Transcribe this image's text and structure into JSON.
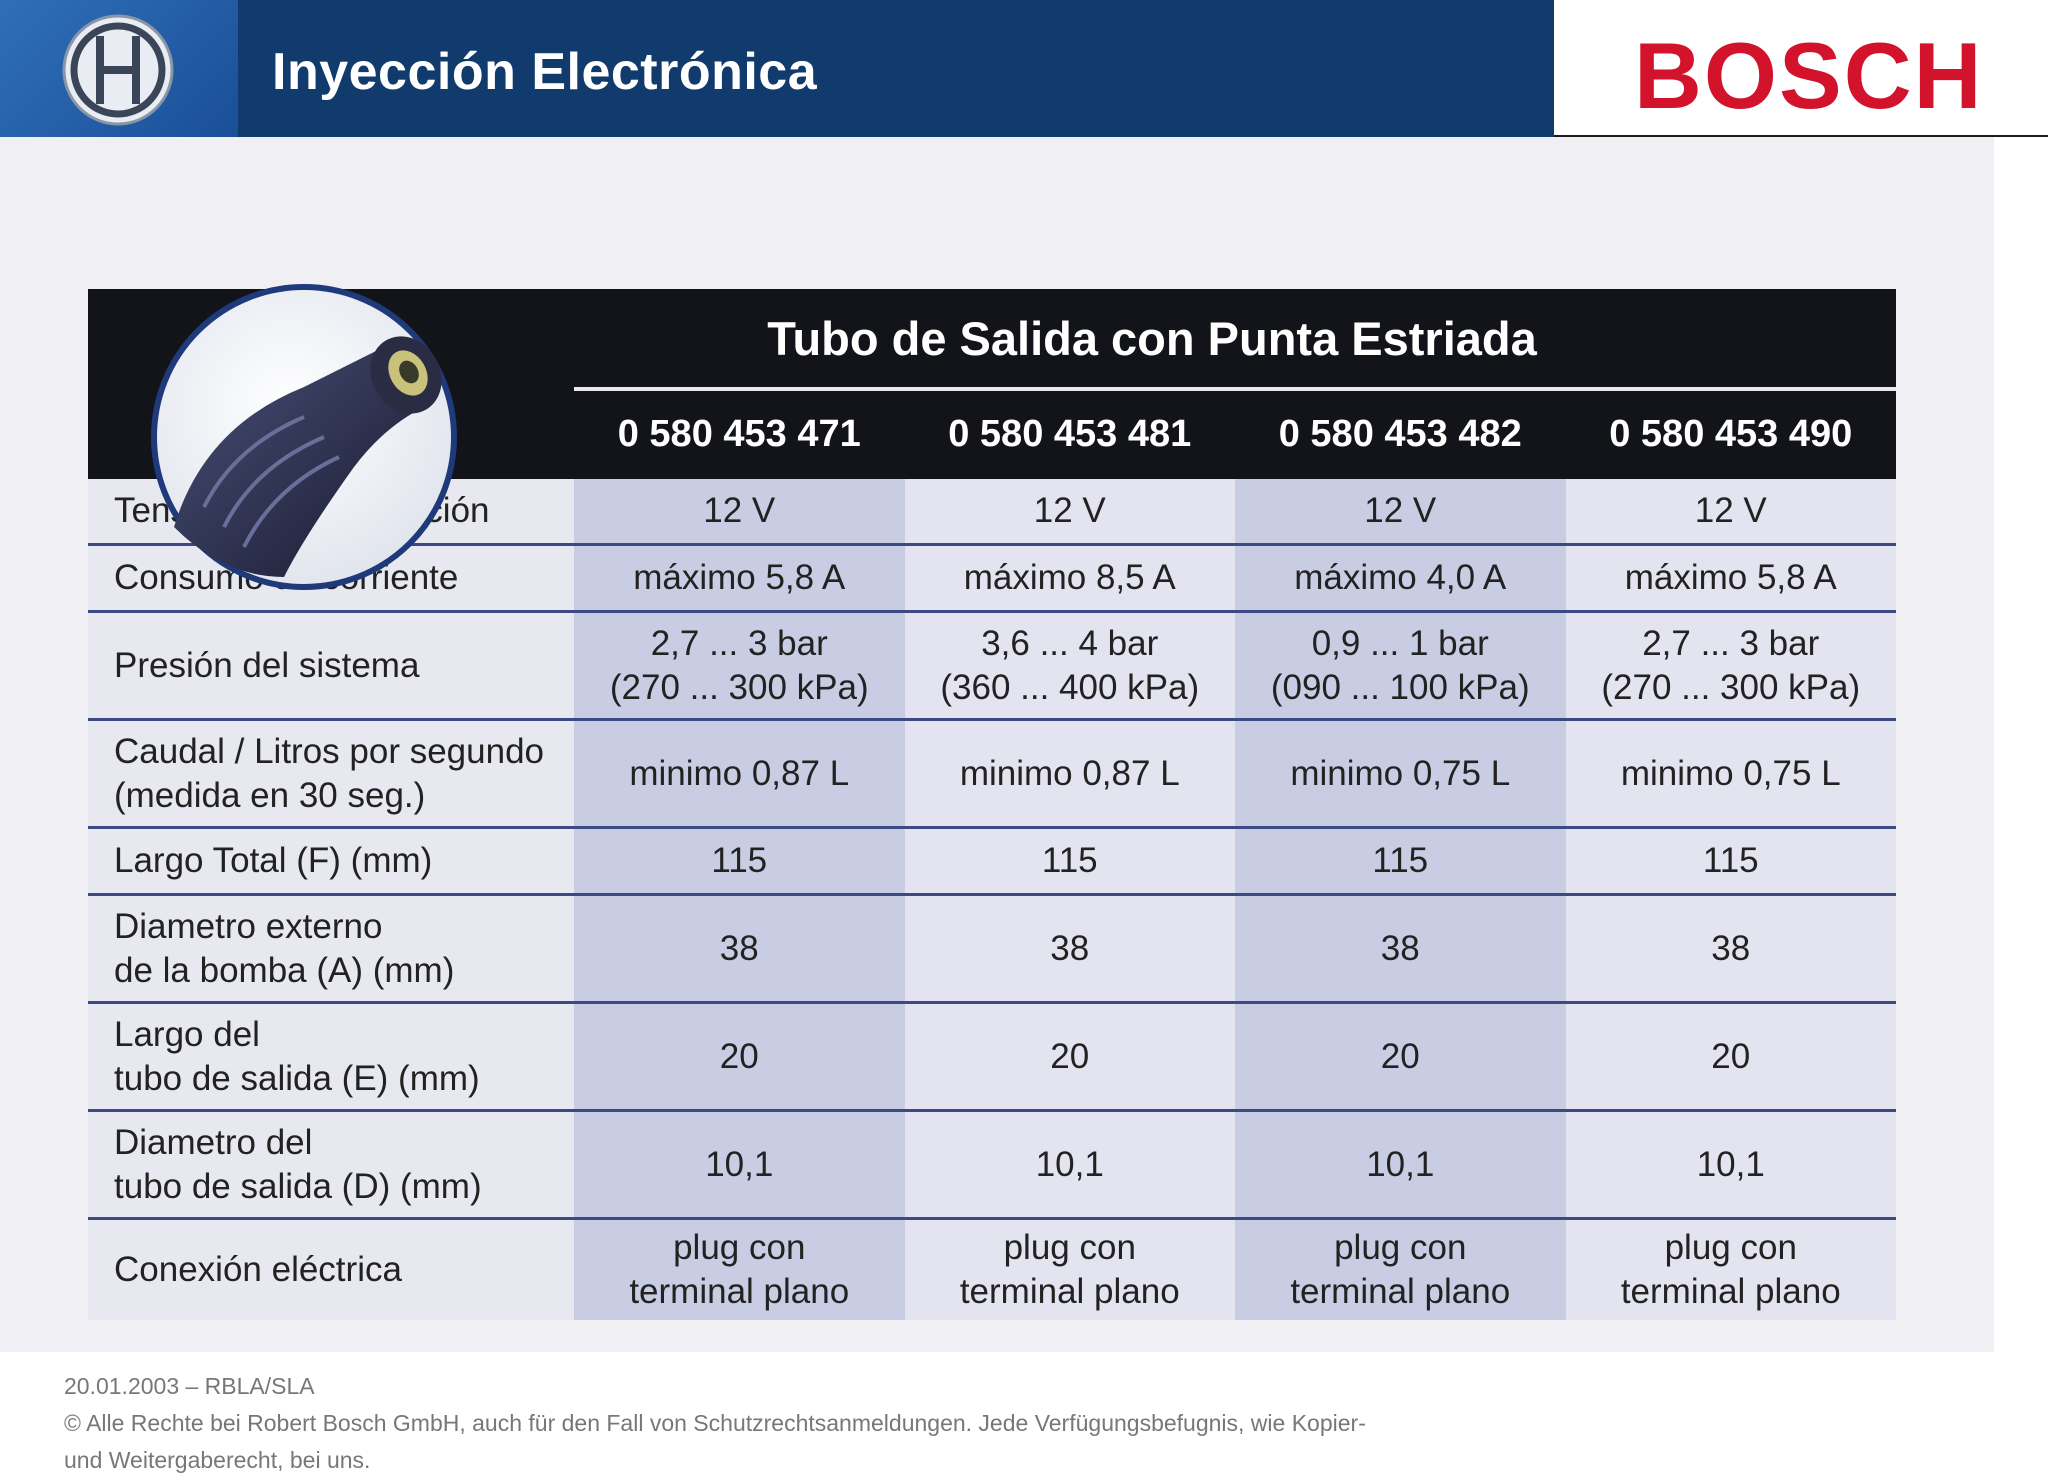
{
  "header": {
    "app_title": "Inyección Electrónica",
    "brand": "BOSCH",
    "colors": {
      "title_bar": "#113a6d",
      "logo_box": "#2f6fb8",
      "brand_red": "#d3132b"
    },
    "icons": [
      "bosch-armature-logo-icon"
    ]
  },
  "table": {
    "title": "Tubo de Salida con Punta Estriada",
    "models": [
      "0 580 453 471",
      "0 580 453 481",
      "0 580 453 482",
      "0 580 453 490"
    ],
    "rows": [
      {
        "label": [
          "Tensión de alimentación"
        ],
        "values": [
          [
            "12 V"
          ],
          [
            "12 V"
          ],
          [
            "12 V"
          ],
          [
            "12 V"
          ]
        ]
      },
      {
        "label": [
          "Consumo de corriente"
        ],
        "values": [
          [
            "máximo 5,8 A"
          ],
          [
            "máximo 8,5 A"
          ],
          [
            "máximo 4,0 A"
          ],
          [
            "máximo 5,8 A"
          ]
        ]
      },
      {
        "label": [
          "Presión del sistema"
        ],
        "values": [
          [
            "2,7 ... 3 bar",
            "(270 ... 300 kPa)"
          ],
          [
            "3,6 ... 4 bar",
            "(360 ... 400 kPa)"
          ],
          [
            "0,9 ... 1 bar",
            "(090 ... 100 kPa)"
          ],
          [
            "2,7 ... 3 bar",
            "(270 ... 300 kPa)"
          ]
        ]
      },
      {
        "label": [
          "Caudal / Litros por segundo",
          "(medida en 30 seg.)"
        ],
        "values": [
          [
            "minimo 0,87 L"
          ],
          [
            "minimo 0,87 L"
          ],
          [
            "minimo 0,75 L"
          ],
          [
            "minimo 0,75 L"
          ]
        ]
      },
      {
        "label": [
          "Largo Total (F) (mm)"
        ],
        "values": [
          [
            "115"
          ],
          [
            "115"
          ],
          [
            "115"
          ],
          [
            "115"
          ]
        ]
      },
      {
        "label": [
          "Diametro externo",
          "de la bomba (A) (mm)"
        ],
        "values": [
          [
            "38"
          ],
          [
            "38"
          ],
          [
            "38"
          ],
          [
            "38"
          ]
        ]
      },
      {
        "label": [
          "Largo del",
          "tubo de salida (E) (mm)"
        ],
        "values": [
          [
            "20"
          ],
          [
            "20"
          ],
          [
            "20"
          ],
          [
            "20"
          ]
        ]
      },
      {
        "label": [
          "Diametro del",
          "tubo de salida (D) (mm)"
        ],
        "values": [
          [
            "10,1"
          ],
          [
            "10,1"
          ],
          [
            "10,1"
          ],
          [
            "10,1"
          ]
        ]
      },
      {
        "label": [
          "Conexión eléctrica"
        ],
        "values": [
          [
            "plug con",
            "terminal plano"
          ],
          [
            "plug con",
            "terminal plano"
          ],
          [
            "plug con",
            "terminal plano"
          ],
          [
            "plug con",
            "terminal plano"
          ]
        ]
      }
    ]
  },
  "footer": {
    "date_line": "20.01.2003 – RBLA/SLA",
    "copyright_1": "© Alle Rechte bei Robert Bosch GmbH, auch für den Fall von Schutzrechtsanmeldungen. Jede Verfügungsbefugnis, wie Kopier-",
    "copyright_2": "und Weitergaberecht, bei uns."
  }
}
